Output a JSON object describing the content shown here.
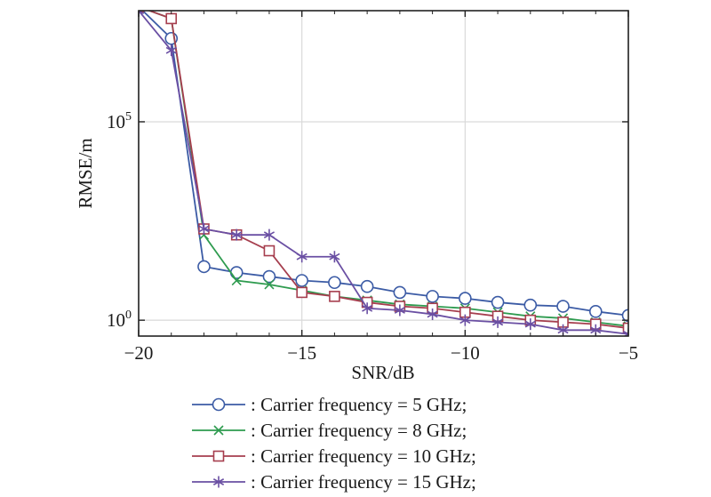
{
  "chart_data": {
    "type": "line",
    "title": "",
    "xlabel": "SNR/dB",
    "ylabel": "RMSE/m",
    "xscale": "linear",
    "yscale": "log",
    "xlim": [
      -20,
      -5
    ],
    "ylim_log10": [
      -0.4,
      7.8
    ],
    "grid": true,
    "x_ticks": [
      -20,
      -15,
      -10,
      -5
    ],
    "x_tick_labels": [
      "−20",
      "−15",
      "−10",
      "−5"
    ],
    "y_ticks": [
      {
        "base": "10",
        "exp": "0",
        "log10": 0
      },
      {
        "base": "10",
        "exp": "5",
        "log10": 5
      }
    ],
    "legend_position": "below plot",
    "x": [
      -20,
      -19,
      -18,
      -17,
      -16,
      -15,
      -14,
      -13,
      -12,
      -11,
      -10,
      -9,
      -8,
      -7,
      -6,
      -5
    ],
    "series": [
      {
        "name": "5 GHz",
        "label": ": Carrier frequency = 5 GHz;",
        "color": "#3b5ba5",
        "marker": "circle",
        "log10_values": [
          7.9,
          7.1,
          1.35,
          1.2,
          1.1,
          1.0,
          0.95,
          0.85,
          0.7,
          0.6,
          0.55,
          0.45,
          0.38,
          0.35,
          0.22,
          0.12
        ]
      },
      {
        "name": "8 GHz",
        "label": ": Carrier frequency = 8 GHz;",
        "color": "#2e9b4f",
        "marker": "x",
        "log10_values": [
          7.9,
          7.6,
          2.15,
          1.0,
          0.9,
          0.75,
          0.6,
          0.5,
          0.4,
          0.35,
          0.3,
          0.2,
          0.1,
          0.05,
          -0.05,
          -0.15
        ]
      },
      {
        "name": "10 GHz",
        "label": ": Carrier frequency = 10 GHz;",
        "color": "#a63e4e",
        "marker": "square",
        "log10_values": [
          7.9,
          7.6,
          2.3,
          2.15,
          1.75,
          0.7,
          0.6,
          0.45,
          0.35,
          0.3,
          0.2,
          0.1,
          0.0,
          -0.05,
          -0.1,
          -0.2
        ]
      },
      {
        "name": "15 GHz",
        "label": ": Carrier frequency = 15 GHz;",
        "color": "#6a4fa3",
        "marker": "star",
        "log10_values": [
          7.8,
          6.8,
          2.3,
          2.15,
          2.15,
          1.6,
          1.6,
          0.3,
          0.25,
          0.15,
          0.0,
          -0.05,
          -0.1,
          -0.25,
          -0.25,
          -0.35
        ]
      }
    ]
  }
}
